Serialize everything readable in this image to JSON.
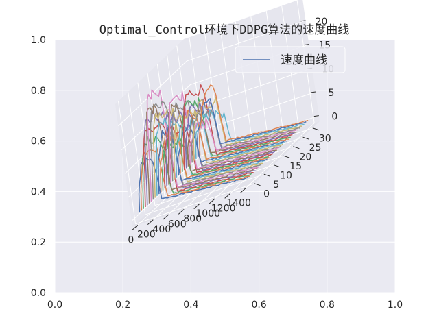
{
  "chart_data": {
    "type": "line",
    "projection": "3d",
    "title": "Optimal_Control环境下DDPG算法的速度曲线",
    "legend": {
      "entries": [
        "速度曲线"
      ],
      "placement": "top-right"
    },
    "background_axes": {
      "xticks": [
        "0.0",
        "0.2",
        "0.4",
        "0.6",
        "0.8",
        "1.0"
      ],
      "yticks": [
        "0.0",
        "0.2",
        "0.4",
        "0.6",
        "0.8",
        "1.0"
      ],
      "xlim": [
        0,
        1
      ],
      "ylim": [
        0,
        1
      ]
    },
    "axes3d": {
      "x": {
        "ticks": [
          "0",
          "200",
          "400",
          "600",
          "800",
          "1000",
          "1200",
          "1400"
        ],
        "values": [
          0,
          200,
          400,
          600,
          800,
          1000,
          1200,
          1400
        ],
        "range": [
          -70,
          1470
        ]
      },
      "y": {
        "ticks": [
          "0",
          "5",
          "10",
          "15",
          "20",
          "25",
          "30"
        ],
        "values": [
          0,
          5,
          10,
          15,
          20,
          25,
          30
        ],
        "range": [
          -1.6,
          33.6
        ]
      },
      "z": {
        "ticks": [
          "0",
          "5",
          "10",
          "15",
          "20"
        ],
        "values": [
          0,
          5,
          10,
          15,
          20
        ],
        "range": [
          -1.2,
          24.6
        ]
      }
    },
    "series_count": 32,
    "series_peak_approx": [
      10.5,
      12.5,
      14.0,
      16.5,
      18.5,
      20.0,
      22.5,
      19.5,
      17.5,
      15.0,
      13.0,
      11.5,
      10.0,
      12.0,
      14.5,
      16.0,
      18.0,
      15.5,
      13.5,
      11.0,
      9.5,
      12.5,
      14.5,
      16.5,
      13.0,
      11.0,
      8.5,
      10.5,
      12.0,
      9.0,
      11.0,
      13.5
    ],
    "grid": true,
    "colors": [
      "#4c72b0",
      "#dd8452",
      "#55a868",
      "#c44e52",
      "#8172b3",
      "#937860",
      "#da8bc3",
      "#8c8c8c",
      "#ccb974",
      "#64b5cd"
    ]
  }
}
